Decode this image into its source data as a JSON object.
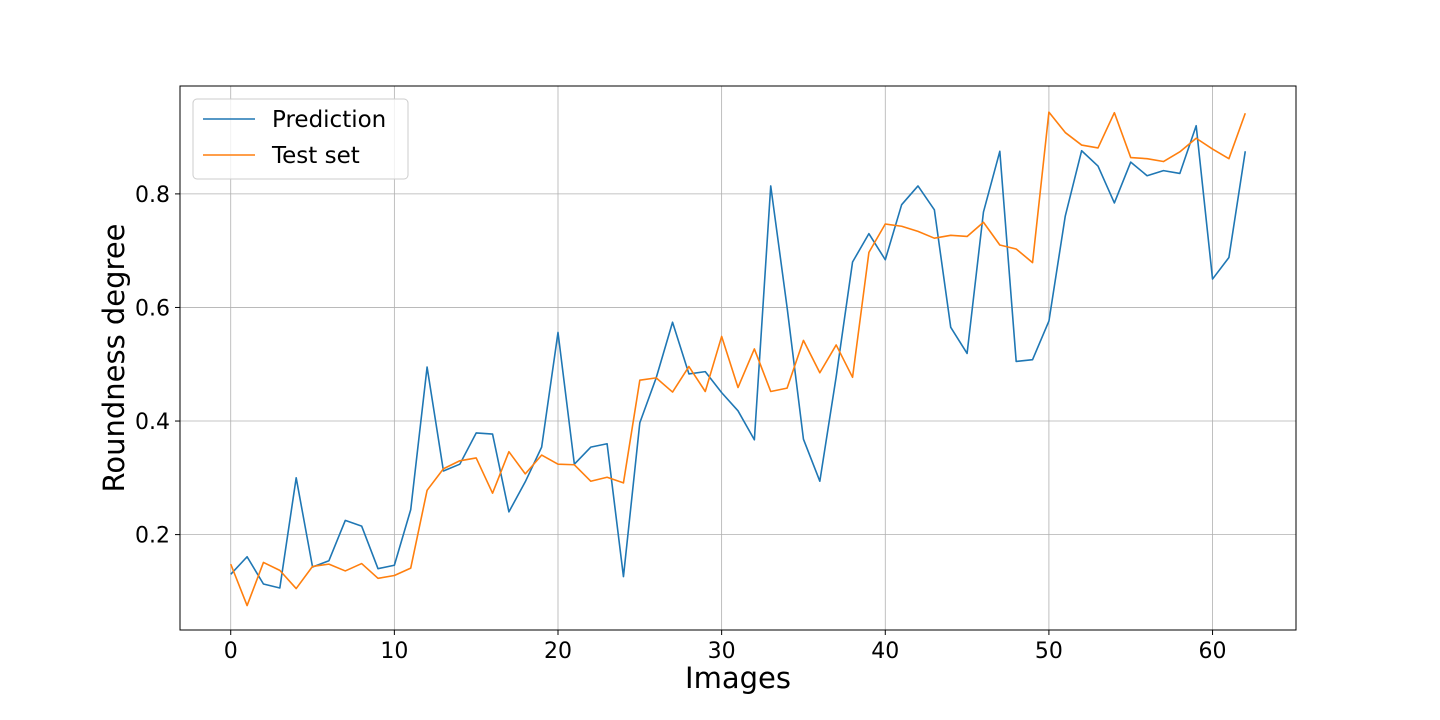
{
  "chart_data": {
    "type": "line",
    "title": "",
    "xlabel": "Images",
    "ylabel": "Roundness degree",
    "xlim": [
      -3.1,
      65.1
    ],
    "ylim": [
      0.032,
      0.99
    ],
    "xticks": [
      0,
      10,
      20,
      30,
      40,
      50,
      60
    ],
    "yticks": [
      0.2,
      0.4,
      0.6,
      0.8
    ],
    "xtick_labels": [
      "0",
      "10",
      "20",
      "30",
      "40",
      "50",
      "60"
    ],
    "ytick_labels": [
      "0.2",
      "0.4",
      "0.6",
      "0.8"
    ],
    "grid": true,
    "legend_position": "upper-left",
    "x": [
      0,
      1,
      2,
      3,
      4,
      5,
      6,
      7,
      8,
      9,
      10,
      11,
      12,
      13,
      14,
      15,
      16,
      17,
      18,
      19,
      20,
      21,
      22,
      23,
      24,
      25,
      26,
      27,
      28,
      29,
      30,
      31,
      32,
      33,
      34,
      35,
      36,
      37,
      38,
      39,
      40,
      41,
      42,
      43,
      44,
      45,
      46,
      47,
      48,
      49,
      50,
      51,
      52,
      53,
      54,
      55,
      56,
      57,
      58,
      59,
      60,
      61,
      62
    ],
    "series": [
      {
        "name": "Prediction",
        "color": "#1f77b4",
        "values": [
          0.13,
          0.161,
          0.113,
          0.106,
          0.3,
          0.143,
          0.154,
          0.225,
          0.215,
          0.14,
          0.146,
          0.244,
          0.495,
          0.312,
          0.324,
          0.379,
          0.377,
          0.24,
          0.293,
          0.354,
          0.556,
          0.324,
          0.354,
          0.36,
          0.126,
          0.397,
          0.476,
          0.574,
          0.483,
          0.487,
          0.45,
          0.418,
          0.367,
          0.814,
          0.6,
          0.368,
          0.294,
          0.478,
          0.68,
          0.73,
          0.684,
          0.781,
          0.814,
          0.772,
          0.565,
          0.519,
          0.768,
          0.875,
          0.505,
          0.508,
          0.576,
          0.761,
          0.876,
          0.849,
          0.784,
          0.856,
          0.832,
          0.841,
          0.836,
          0.92,
          0.65,
          0.688,
          0.875
        ]
      },
      {
        "name": "Test set",
        "color": "#ff7f0e",
        "values": [
          0.148,
          0.075,
          0.151,
          0.137,
          0.105,
          0.144,
          0.148,
          0.136,
          0.149,
          0.123,
          0.128,
          0.141,
          0.278,
          0.316,
          0.33,
          0.335,
          0.273,
          0.346,
          0.307,
          0.34,
          0.324,
          0.323,
          0.294,
          0.301,
          0.291,
          0.472,
          0.476,
          0.451,
          0.496,
          0.452,
          0.549,
          0.459,
          0.527,
          0.452,
          0.458,
          0.542,
          0.485,
          0.534,
          0.477,
          0.697,
          0.747,
          0.743,
          0.734,
          0.722,
          0.727,
          0.725,
          0.75,
          0.71,
          0.703,
          0.679,
          0.944,
          0.908,
          0.886,
          0.881,
          0.943,
          0.864,
          0.862,
          0.857,
          0.874,
          0.898,
          0.879,
          0.862,
          0.942
        ]
      }
    ]
  }
}
